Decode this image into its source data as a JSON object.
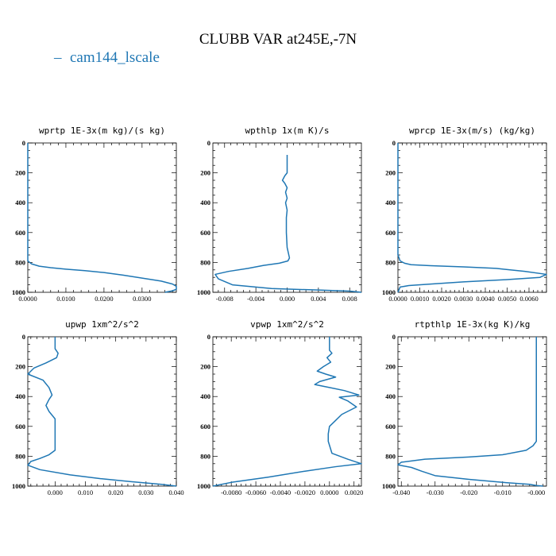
{
  "figure": {
    "title": "CLUBB VAR at245E,-7N",
    "legend_label": "cam144_lscale",
    "legend_marker": "–",
    "series_color": "#1f77b4"
  },
  "chart_data": [
    {
      "type": "line",
      "title": "wprtp  1E-3x(m kg)/(s kg)",
      "xlim": [
        0,
        0.039
      ],
      "ylim": [
        1000,
        0
      ],
      "xticks": [
        0,
        0.01,
        0.02,
        0.03
      ],
      "xtick_labels": [
        "0.0000",
        "0.0100",
        "0.0200",
        "0.0300"
      ],
      "yticks": [
        0,
        200,
        400,
        600,
        800,
        1000
      ],
      "ytick_labels": [
        "0",
        "200",
        "400",
        "600",
        "800",
        "1000"
      ],
      "points": [
        [
          0.0,
          0
        ],
        [
          0.0,
          400
        ],
        [
          0.0,
          700
        ],
        [
          0.0,
          790
        ],
        [
          0.001,
          810
        ],
        [
          0.003,
          825
        ],
        [
          0.006,
          835
        ],
        [
          0.01,
          845
        ],
        [
          0.015,
          855
        ],
        [
          0.02,
          868
        ],
        [
          0.025,
          885
        ],
        [
          0.03,
          905
        ],
        [
          0.035,
          925
        ],
        [
          0.038,
          945
        ],
        [
          0.039,
          960
        ],
        [
          0.039,
          980
        ],
        [
          0.038,
          990
        ],
        [
          0.036,
          1000
        ]
      ]
    },
    {
      "type": "line",
      "title": "wpthlp  1x(m K)/s",
      "xlim": [
        -0.0095,
        0.0095
      ],
      "ylim": [
        1000,
        0
      ],
      "xticks": [
        -0.008,
        -0.004,
        0,
        0.004,
        0.008
      ],
      "xtick_labels": [
        "-0.008",
        "-0.004",
        "0.000",
        "0.004",
        "0.008"
      ],
      "yticks": [
        0,
        200,
        400,
        600,
        800,
        1000
      ],
      "ytick_labels": [
        "0",
        "200",
        "400",
        "600",
        "800",
        "1000"
      ],
      "points": [
        [
          0.0,
          80
        ],
        [
          0.0,
          150
        ],
        [
          0.0,
          200
        ],
        [
          -0.0003,
          220
        ],
        [
          -0.0006,
          250
        ],
        [
          -0.0003,
          270
        ],
        [
          0.0,
          300
        ],
        [
          -0.0002,
          330
        ],
        [
          0.0,
          370
        ],
        [
          -0.0002,
          400
        ],
        [
          0.0,
          450
        ],
        [
          -0.0001,
          500
        ],
        [
          -0.0001,
          600
        ],
        [
          0.0,
          700
        ],
        [
          0.0003,
          770
        ],
        [
          0.0001,
          790
        ],
        [
          -0.001,
          805
        ],
        [
          -0.003,
          820
        ],
        [
          -0.005,
          840
        ],
        [
          -0.0075,
          860
        ],
        [
          -0.0092,
          880
        ],
        [
          -0.0088,
          910
        ],
        [
          -0.007,
          950
        ],
        [
          -0.002,
          975
        ],
        [
          0.004,
          985
        ],
        [
          0.008,
          992
        ],
        [
          0.0095,
          1000
        ]
      ]
    },
    {
      "type": "line",
      "title": "wprcp  1E-3x(m/s) (kg/kg)",
      "xlim": [
        0,
        0.0068
      ],
      "ylim": [
        1000,
        0
      ],
      "xticks": [
        0,
        0.001,
        0.002,
        0.003,
        0.004,
        0.005,
        0.006
      ],
      "xtick_labels": [
        "0.0000",
        "0.0010",
        "0.0020",
        "0.0030",
        "0.0040",
        "0.0050",
        "0.0060"
      ],
      "yticks": [
        0,
        200,
        400,
        600,
        800,
        1000
      ],
      "ytick_labels": [
        "0",
        "200",
        "400",
        "600",
        "800",
        "1000"
      ],
      "points": [
        [
          0.0,
          0
        ],
        [
          0.0,
          500
        ],
        [
          0.0,
          750
        ],
        [
          0.0001,
          790
        ],
        [
          0.0003,
          805
        ],
        [
          0.0006,
          815
        ],
        [
          0.0015,
          822
        ],
        [
          0.003,
          830
        ],
        [
          0.0045,
          840
        ],
        [
          0.0058,
          860
        ],
        [
          0.0068,
          880
        ],
        [
          0.0065,
          900
        ],
        [
          0.005,
          915
        ],
        [
          0.003,
          930
        ],
        [
          0.0015,
          945
        ],
        [
          0.0005,
          955
        ],
        [
          0.0001,
          965
        ],
        [
          0.0,
          1000
        ]
      ]
    },
    {
      "type": "line",
      "title": "upwp  1xm^2/s^2",
      "xlim": [
        -0.009,
        0.04
      ],
      "ylim": [
        1000,
        0
      ],
      "xticks": [
        0,
        0.01,
        0.02,
        0.03,
        0.04
      ],
      "xtick_labels": [
        "0.000",
        "0.010",
        "0.020",
        "0.030",
        "0.040"
      ],
      "yticks": [
        0,
        200,
        400,
        600,
        800,
        1000
      ],
      "ytick_labels": [
        "0",
        "200",
        "400",
        "600",
        "800",
        "1000"
      ],
      "points": [
        [
          0.0,
          0
        ],
        [
          0.0,
          80
        ],
        [
          0.001,
          110
        ],
        [
          0.0005,
          140
        ],
        [
          -0.003,
          175
        ],
        [
          -0.007,
          210
        ],
        [
          -0.009,
          250
        ],
        [
          -0.004,
          290
        ],
        [
          -0.002,
          340
        ],
        [
          -0.001,
          390
        ],
        [
          -0.002,
          420
        ],
        [
          -0.003,
          460
        ],
        [
          -0.002,
          500
        ],
        [
          0.0,
          550
        ],
        [
          0.0,
          700
        ],
        [
          0.0,
          760
        ],
        [
          -0.002,
          790
        ],
        [
          -0.005,
          815
        ],
        [
          -0.008,
          835
        ],
        [
          -0.009,
          860
        ],
        [
          -0.005,
          890
        ],
        [
          0.005,
          925
        ],
        [
          0.015,
          950
        ],
        [
          0.025,
          970
        ],
        [
          0.035,
          988
        ],
        [
          0.04,
          1000
        ]
      ]
    },
    {
      "type": "line",
      "title": "vpwp  1xm^2/s^2",
      "xlim": [
        -0.0095,
        0.0026
      ],
      "ylim": [
        1000,
        0
      ],
      "xticks": [
        -0.008,
        -0.006,
        -0.004,
        -0.002,
        0,
        0.002
      ],
      "xtick_labels": [
        "-0.0080",
        "-0.0060",
        "-0.0040",
        "-0.0020",
        "0.0000",
        "0.0020"
      ],
      "yticks": [
        0,
        200,
        400,
        600,
        800,
        1000
      ],
      "ytick_labels": [
        "0",
        "200",
        "400",
        "600",
        "800",
        "1000"
      ],
      "points": [
        [
          0.0,
          0
        ],
        [
          0.0,
          90
        ],
        [
          0.0002,
          110
        ],
        [
          -0.0002,
          140
        ],
        [
          0.0001,
          170
        ],
        [
          -0.0005,
          200
        ],
        [
          -0.001,
          230
        ],
        [
          -0.0003,
          250
        ],
        [
          0.0005,
          270
        ],
        [
          -0.0008,
          300
        ],
        [
          -0.0012,
          320
        ],
        [
          0.0,
          340
        ],
        [
          0.0012,
          360
        ],
        [
          0.0024,
          390
        ],
        [
          0.0008,
          405
        ],
        [
          0.0015,
          430
        ],
        [
          0.0022,
          470
        ],
        [
          0.001,
          520
        ],
        [
          0.0005,
          560
        ],
        [
          0.0,
          600
        ],
        [
          -0.0001,
          650
        ],
        [
          -0.0001,
          700
        ],
        [
          0.0002,
          780
        ],
        [
          0.0015,
          820
        ],
        [
          0.0026,
          850
        ],
        [
          0.0005,
          870
        ],
        [
          -0.002,
          900
        ],
        [
          -0.005,
          940
        ],
        [
          -0.008,
          975
        ],
        [
          -0.0095,
          1000
        ]
      ]
    },
    {
      "type": "line",
      "title": "rtpthlp  1E-3x(kg K)/kg",
      "xlim": [
        -0.041,
        0.003
      ],
      "ylim": [
        1000,
        0
      ],
      "xticks": [
        -0.04,
        -0.03,
        -0.02,
        -0.01,
        0
      ],
      "xtick_labels": [
        "-0.040",
        "-0.030",
        "-0.020",
        "-0.010",
        "-0.000"
      ],
      "yticks": [
        0,
        200,
        400,
        600,
        800,
        1000
      ],
      "ytick_labels": [
        "0",
        "200",
        "400",
        "600",
        "800",
        "1000"
      ],
      "points": [
        [
          0.0,
          0
        ],
        [
          0.0,
          400
        ],
        [
          0.0,
          700
        ],
        [
          -0.001,
          730
        ],
        [
          -0.003,
          760
        ],
        [
          -0.01,
          790
        ],
        [
          -0.02,
          805
        ],
        [
          -0.033,
          820
        ],
        [
          -0.04,
          840
        ],
        [
          -0.041,
          858
        ],
        [
          -0.037,
          875
        ],
        [
          -0.034,
          900
        ],
        [
          -0.03,
          930
        ],
        [
          -0.02,
          955
        ],
        [
          -0.01,
          975
        ],
        [
          -0.002,
          988
        ],
        [
          0.0,
          996
        ],
        [
          0.002,
          1000
        ]
      ]
    }
  ]
}
